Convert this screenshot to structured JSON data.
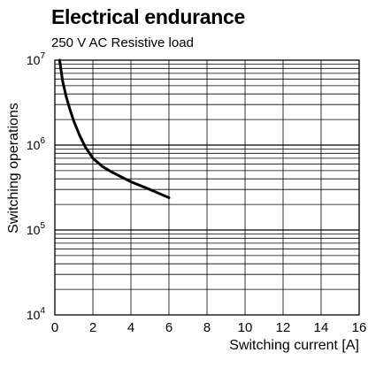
{
  "chart_data": {
    "type": "line",
    "title": "Electrical endurance",
    "subtitle": "250 V AC Resistive load",
    "xlabel": "Switching current [A]",
    "ylabel": "Switching operations",
    "x_ticks": [
      0,
      2,
      4,
      6,
      8,
      10,
      12,
      14,
      16
    ],
    "xlim": [
      0,
      16
    ],
    "y_scale": "log",
    "ylim": [
      10000,
      10000000
    ],
    "y_ticks": [
      {
        "value": 10000,
        "base": "10",
        "exp": "4"
      },
      {
        "value": 100000,
        "base": "10",
        "exp": "5"
      },
      {
        "value": 1000000,
        "base": "10",
        "exp": "6"
      },
      {
        "value": 10000000,
        "base": "10",
        "exp": "7"
      }
    ],
    "grid": true,
    "series": [
      {
        "color": "#000000",
        "x": [
          0.25,
          0.4,
          0.6,
          0.8,
          1.0,
          1.3,
          1.6,
          2.0,
          2.5,
          3.0,
          4.0,
          5.0,
          6.0
        ],
        "y": [
          10000000,
          5800000,
          3700000,
          2600000,
          1900000,
          1300000,
          950000,
          700000,
          560000,
          480000,
          370000,
          300000,
          240000
        ]
      }
    ]
  }
}
